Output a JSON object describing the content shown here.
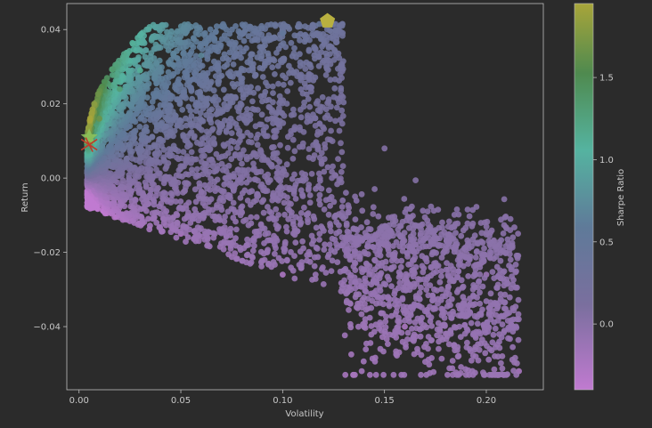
{
  "chart_data": {
    "type": "scatter",
    "title": "",
    "xlabel": "Volatility",
    "ylabel": "Return",
    "xlim": [
      -0.006,
      0.228
    ],
    "ylim": [
      -0.057,
      0.047
    ],
    "x_ticks": [
      "0.00",
      "0.05",
      "0.10",
      "0.15",
      "0.20"
    ],
    "x_tick_values": [
      0.0,
      0.05,
      0.1,
      0.15,
      0.2
    ],
    "y_ticks": [
      "−0.04",
      "−0.02",
      "0.00",
      "0.02",
      "0.04"
    ],
    "y_tick_values": [
      -0.04,
      -0.02,
      0.0,
      0.02,
      0.04
    ],
    "grid": false,
    "colorbar": {
      "label": "Sharpe Ratio",
      "range": [
        -0.4,
        1.95
      ],
      "ticks": [
        "0.0",
        "0.5",
        "1.0",
        "1.5"
      ],
      "tick_values": [
        0.0,
        0.5,
        1.0,
        1.5
      ],
      "colors": [
        "#c07ad0",
        "#5f7a99",
        "#55b3a0",
        "#4f8a4f",
        "#a8a53a"
      ]
    },
    "portfolios_description_points": [
      {
        "x": 0.005,
        "y": 0.0095,
        "sharpe": 1.8
      },
      {
        "x": 0.01,
        "y": 0.016,
        "sharpe": 1.6
      },
      {
        "x": 0.02,
        "y": 0.024,
        "sharpe": 1.2
      },
      {
        "x": 0.03,
        "y": 0.029,
        "sharpe": 0.95
      },
      {
        "x": 0.06,
        "y": 0.033,
        "sharpe": 0.55
      },
      {
        "x": 0.1,
        "y": 0.039,
        "sharpe": 0.4
      },
      {
        "x": 0.118,
        "y": 0.0415,
        "sharpe": 0.35
      },
      {
        "x": 0.01,
        "y": 0.0,
        "sharpe": 0.0
      },
      {
        "x": 0.05,
        "y": -0.015,
        "sharpe": -0.3
      },
      {
        "x": 0.1,
        "y": -0.026,
        "sharpe": -0.26
      },
      {
        "x": 0.15,
        "y": -0.018,
        "sharpe": -0.12
      },
      {
        "x": 0.2,
        "y": -0.026,
        "sharpe": -0.13
      },
      {
        "x": 0.207,
        "y": -0.027,
        "sharpe": -0.13
      },
      {
        "x": 0.16,
        "y": -0.04,
        "sharpe": -0.25
      },
      {
        "x": 0.216,
        "y": -0.052,
        "sharpe": -0.24
      },
      {
        "x": 0.15,
        "y": 0.008,
        "sharpe": 0.05
      }
    ],
    "markers": [
      {
        "name": "max-sharpe",
        "shape": "star",
        "x": 0.005,
        "y": 0.011,
        "color": "#8fc45a"
      },
      {
        "name": "min-volatility",
        "shape": "x",
        "x": 0.005,
        "y": 0.009,
        "color": "#c0392b"
      },
      {
        "name": "max-return",
        "shape": "pentagon",
        "x": 0.122,
        "y": 0.0423,
        "color": "#b8b040"
      }
    ]
  }
}
